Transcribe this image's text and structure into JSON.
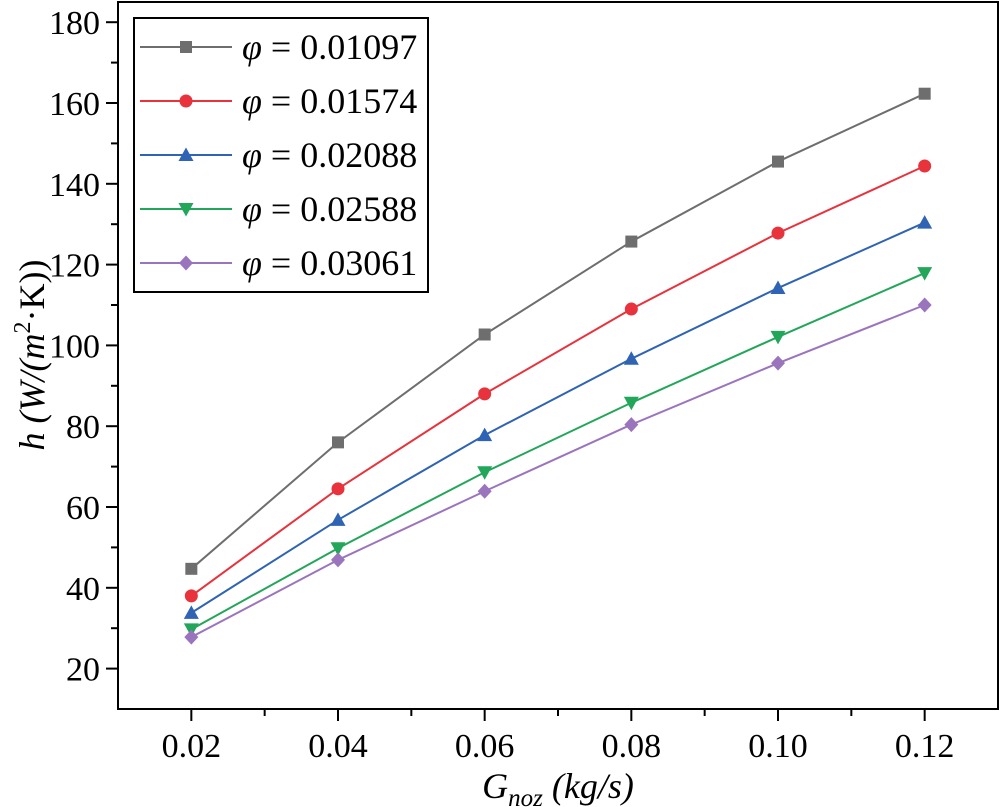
{
  "chart_data": {
    "type": "line",
    "xlabel": {
      "main": "G",
      "sub": "noz",
      "rest": " (kg/s)"
    },
    "ylabel": {
      "main": "h",
      "rest1": " (W/(m",
      "sup": "2",
      "rest2": "·K))"
    },
    "x": [
      0.02,
      0.04,
      0.06,
      0.08,
      0.1,
      0.12
    ],
    "x_tick_labels": [
      "0.02",
      "0.04",
      "0.06",
      "0.08",
      "0.10",
      "0.12"
    ],
    "xlim": [
      0.01,
      0.13
    ],
    "ylim": [
      10,
      185
    ],
    "y_ticks": [
      20,
      40,
      60,
      80,
      100,
      120,
      140,
      160,
      180
    ],
    "y_tick_labels": [
      "20",
      "40",
      "60",
      "80",
      "100",
      "120",
      "140",
      "160",
      "180"
    ],
    "legend_position": "top-left",
    "grid": false,
    "series": [
      {
        "name": "φ = 0.01097",
        "symbol": "φ",
        "value_text": " = 0.01097",
        "color": "#6e6e6e",
        "marker": "square",
        "values": [
          44.7,
          76.0,
          102.7,
          125.7,
          145.5,
          162.3
        ]
      },
      {
        "name": "φ = 0.01574",
        "symbol": "φ",
        "value_text": " = 0.01574",
        "color": "#e8323c",
        "marker": "circle",
        "values": [
          38.0,
          64.5,
          88.0,
          109.0,
          127.8,
          144.4
        ]
      },
      {
        "name": "φ = 0.02088",
        "symbol": "φ",
        "value_text": " = 0.02088",
        "color": "#2f63b3",
        "marker": "triangle-up",
        "values": [
          33.8,
          56.8,
          77.8,
          96.7,
          114.2,
          130.4
        ]
      },
      {
        "name": "φ = 0.02588",
        "symbol": "φ",
        "value_text": " = 0.02588",
        "color": "#22a65a",
        "marker": "triangle-down",
        "values": [
          29.7,
          49.8,
          68.6,
          85.8,
          102.1,
          117.9
        ]
      },
      {
        "name": "φ = 0.03061",
        "symbol": "φ",
        "value_text": " = 0.03061",
        "color": "#9b74be",
        "marker": "diamond",
        "values": [
          27.8,
          46.9,
          63.9,
          80.4,
          95.6,
          110.0
        ]
      }
    ]
  }
}
